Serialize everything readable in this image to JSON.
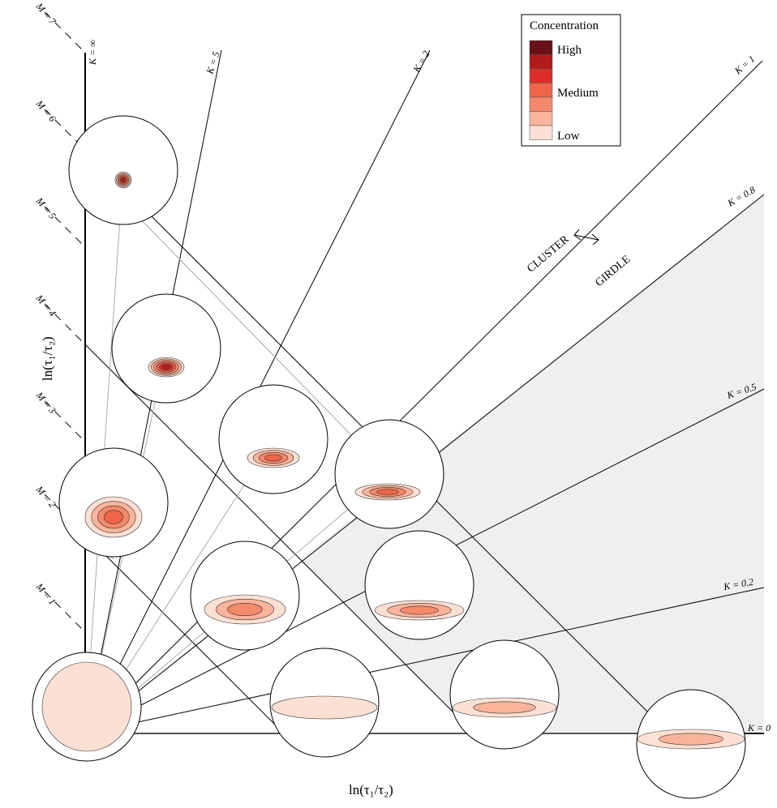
{
  "legend": {
    "title": "Concentration",
    "labels": [
      "High",
      "Medium",
      "Low"
    ]
  },
  "k_lines": [
    "K = ∞",
    "K = 5",
    "K = 2",
    "K = 1",
    "K = 0.8",
    "K = 0.5",
    "K = 0.2",
    "K = 0"
  ],
  "m_lines": [
    "M = 7",
    "M = 6",
    "M = 5",
    "M = 4",
    "M = 3",
    "M = 2",
    "M = 1"
  ],
  "annotations": {
    "cluster": "CLUSTER",
    "girdle": "GIRDLE"
  },
  "axes": {
    "x_label": "ln(τ₁/τ₂)",
    "y_label": "ln(τ₁/τ₂)"
  }
}
